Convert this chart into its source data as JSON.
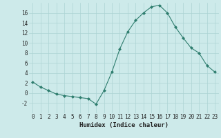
{
  "x": [
    0,
    1,
    2,
    3,
    4,
    5,
    6,
    7,
    8,
    9,
    10,
    11,
    12,
    13,
    14,
    15,
    16,
    17,
    18,
    19,
    20,
    21,
    22,
    23
  ],
  "y": [
    2.2,
    1.2,
    0.5,
    -0.2,
    -0.5,
    -0.7,
    -0.9,
    -1.1,
    -2.2,
    0.5,
    4.2,
    8.8,
    12.2,
    14.5,
    16.0,
    17.2,
    17.5,
    16.0,
    13.2,
    11.0,
    9.0,
    8.0,
    5.5,
    4.2
  ],
  "line_color": "#2e7d6e",
  "marker": "D",
  "marker_size": 2.0,
  "bg_color": "#cdeaea",
  "grid_color": "#add4d4",
  "xlabel": "Humidex (Indice chaleur)",
  "xlabel_fontsize": 6.5,
  "tick_fontsize": 5.5,
  "ylim": [
    -4,
    18
  ],
  "xlim": [
    -0.5,
    23.5
  ],
  "yticks": [
    -2,
    0,
    2,
    4,
    6,
    8,
    10,
    12,
    14,
    16
  ],
  "xticks": [
    0,
    1,
    2,
    3,
    4,
    5,
    6,
    7,
    8,
    9,
    10,
    11,
    12,
    13,
    14,
    15,
    16,
    17,
    18,
    19,
    20,
    21,
    22,
    23
  ]
}
